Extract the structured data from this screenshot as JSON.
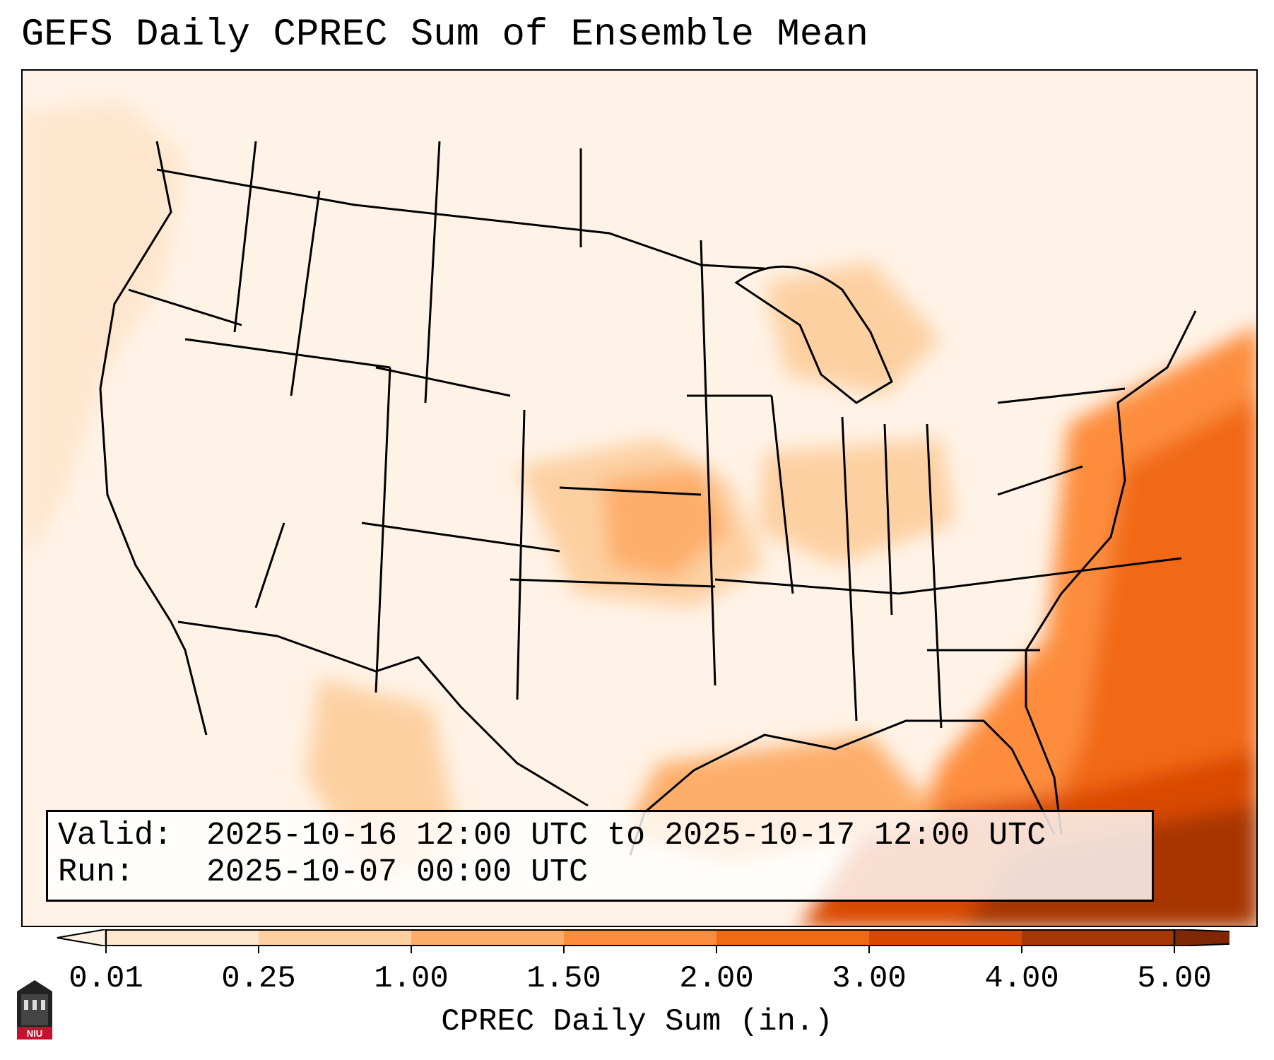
{
  "title": "GEFS Daily CPREC Sum of Ensemble Mean",
  "info": {
    "valid_label": "Valid:",
    "valid_value": "2025-10-16 12:00 UTC to 2025-10-17 12:00 UTC",
    "run_label": "Run:",
    "run_value": "2025-10-07 00:00 UTC"
  },
  "colorbar": {
    "label": "CPREC Daily Sum (in.)",
    "ticks": [
      "0.01",
      "0.25",
      "1.00",
      "1.50",
      "2.00",
      "3.00",
      "4.00",
      "5.00"
    ],
    "colors": [
      "#fff1e2",
      "#fee6ce",
      "#fdd0a2",
      "#fdae6b",
      "#fd8d3c",
      "#f16913",
      "#d94801",
      "#a63603",
      "#7f2704"
    ]
  },
  "logo": {
    "text": "NIU",
    "color": "#c8102e"
  },
  "colors": {
    "land_fill": "#fff3e7",
    "borders": "#000000"
  }
}
